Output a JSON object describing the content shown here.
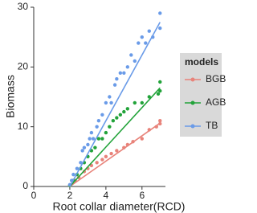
{
  "chart_data": {
    "type": "scatter",
    "x_label": "Root collar diameter(RCD)",
    "y_label": "Biomass",
    "legend_title": "models",
    "legend_position": "right",
    "xlim": [
      0,
      7.3
    ],
    "ylim": [
      0,
      30
    ],
    "xticks": [
      0,
      2,
      4,
      6
    ],
    "yticks": [
      0,
      10,
      20,
      30
    ],
    "grid": false,
    "series": [
      {
        "name": "BGB",
        "color": "#e8837a",
        "x": [
          2.0,
          2.3,
          2.5,
          2.8,
          3.0,
          3.2,
          3.5,
          3.8,
          4.0,
          4.3,
          4.6,
          5.0,
          5.2,
          5.5,
          6.0,
          6.4,
          6.8,
          7.0,
          7.0
        ],
        "values": [
          0.2,
          1,
          1.5,
          2.5,
          3,
          3.5,
          4,
          4.5,
          5,
          5.5,
          6,
          6.5,
          7,
          7.5,
          8,
          9.5,
          10,
          11,
          10.5
        ],
        "trend": {
          "x": [
            2,
            7
          ],
          "values": [
            0,
            10.6
          ]
        }
      },
      {
        "name": "AGB",
        "color": "#22a33a",
        "x": [
          2.0,
          2.2,
          2.4,
          2.6,
          2.8,
          3.0,
          3.2,
          3.4,
          3.6,
          3.8,
          4.0,
          4.2,
          4.4,
          4.6,
          4.8,
          5.0,
          5.2,
          5.6,
          6.0,
          6.4,
          6.9,
          7.0,
          7.0
        ],
        "values": [
          0.2,
          1,
          2,
          3,
          4,
          5,
          6,
          6.5,
          8,
          8,
          9,
          10,
          11,
          11.5,
          12,
          12.5,
          13,
          14,
          14,
          15,
          15.5,
          17.5,
          16
        ],
        "trend": {
          "x": [
            2,
            7
          ],
          "values": [
            0,
            16.5
          ]
        }
      },
      {
        "name": "TB",
        "color": "#6a9be8",
        "x": [
          2.0,
          2.1,
          2.2,
          2.4,
          2.6,
          2.7,
          2.8,
          3.0,
          3.1,
          3.2,
          3.3,
          3.5,
          3.6,
          3.8,
          4.0,
          4.2,
          4.3,
          4.5,
          4.6,
          4.8,
          5.0,
          5.2,
          5.4,
          5.6,
          5.8,
          6.0,
          6.2,
          6.4,
          6.6,
          7.0,
          7.0
        ],
        "values": [
          0.3,
          1,
          2,
          3,
          4,
          6,
          6.5,
          7,
          8,
          9,
          8,
          10,
          11,
          12,
          14,
          15,
          14,
          17,
          18,
          19,
          19,
          20,
          22,
          21,
          24,
          25,
          24,
          26,
          25,
          29,
          26.5
        ],
        "trend": {
          "x": [
            2,
            7
          ],
          "values": [
            0,
            27.5
          ]
        }
      }
    ]
  }
}
